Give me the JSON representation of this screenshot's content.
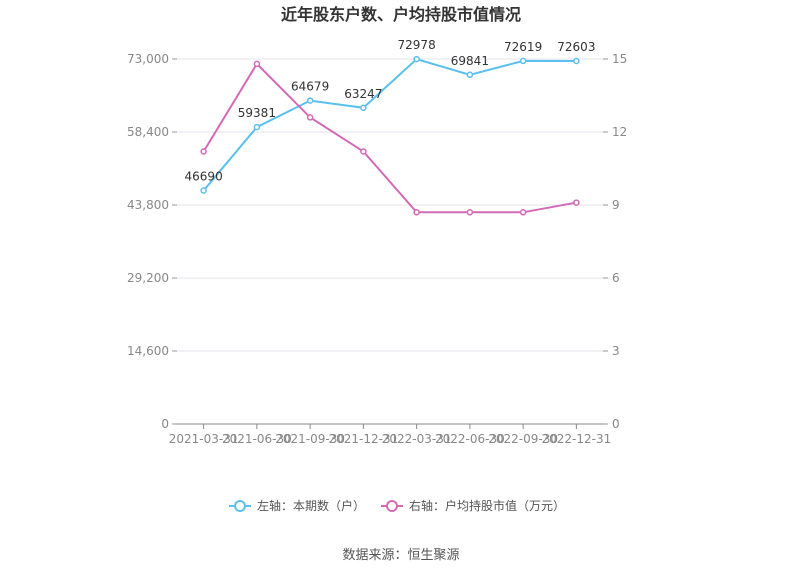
{
  "chart_data": {
    "type": "line",
    "title": "近年股东户数、户均持股市值情况",
    "categories": [
      "2021-03-31",
      "2021-06-30",
      "2021-09-30",
      "2021-12-31",
      "2022-03-31",
      "2022-06-30",
      "2022-09-30",
      "2022-12-31"
    ],
    "y_left": {
      "min": 0,
      "max": 73000,
      "ticks": [
        "0",
        "14,600",
        "29,200",
        "43,800",
        "58,400",
        "73,000"
      ]
    },
    "y_right": {
      "min": 0,
      "max": 15,
      "ticks": [
        "0",
        "3",
        "6",
        "9",
        "12",
        "15"
      ]
    },
    "series": [
      {
        "name": "左轴：本期数（户）",
        "axis": "left",
        "color": "#5bc0f0",
        "values": [
          46690,
          59381,
          64679,
          63247,
          72978,
          69841,
          72619,
          72603
        ],
        "labels": [
          "46690",
          "59381",
          "64679",
          "63247",
          "72978",
          "69841",
          "72619",
          "72603"
        ]
      },
      {
        "name": "右轴：户均持股市值（万元）",
        "axis": "right",
        "color": "#d36ab6",
        "values": [
          11.2,
          14.8,
          12.6,
          11.2,
          8.7,
          8.7,
          8.7,
          9.1
        ]
      }
    ],
    "grid": true,
    "legend_position": "bottom"
  },
  "source": "数据来源：恒生聚源"
}
